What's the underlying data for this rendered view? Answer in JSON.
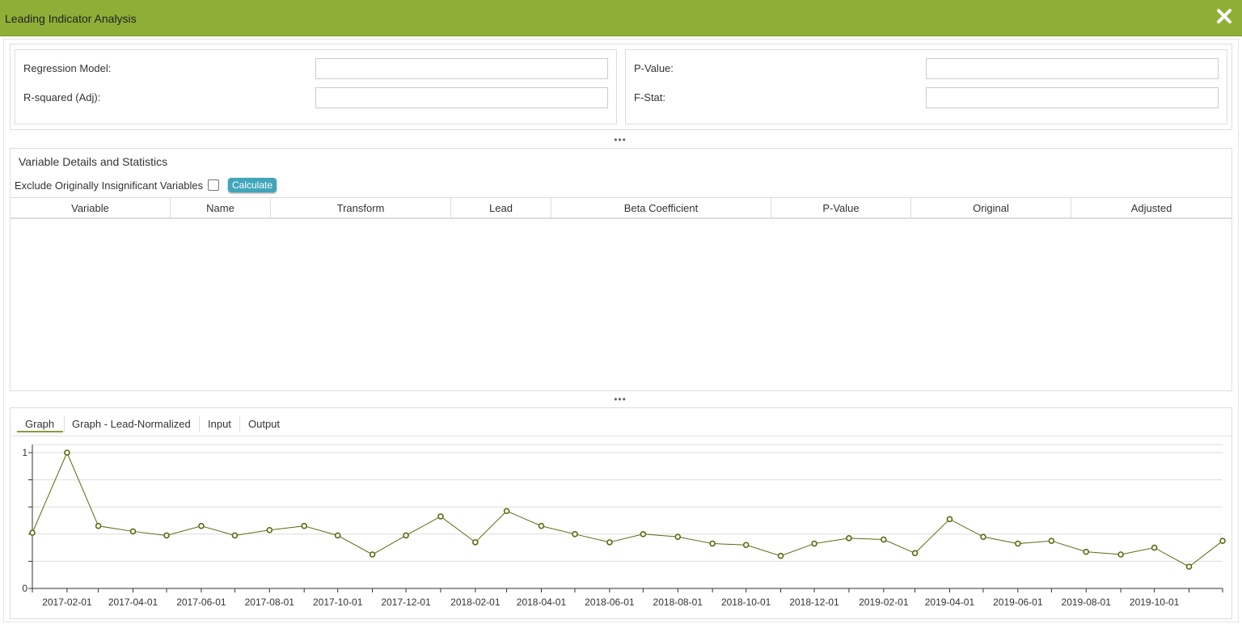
{
  "window": {
    "title": "Leading Indicator Analysis"
  },
  "stats": {
    "regression_model_label": "Regression Model:",
    "regression_model_value": "",
    "r_squared_label": "R-squared (Adj):",
    "r_squared_value": "",
    "p_value_label": "P-Value:",
    "p_value_value": "",
    "f_stat_label": "F-Stat:",
    "f_stat_value": ""
  },
  "splitter": {
    "glyph": "•••"
  },
  "variables": {
    "title": "Variable Details and Statistics",
    "exclude_label": "Exclude Originally Insignificant Variables",
    "exclude_checked": false,
    "calculate_label": "Calculate",
    "columns": [
      "Variable",
      "Name",
      "Transform",
      "Lead",
      "Beta Coefficient",
      "P-Value",
      "Original",
      "Adjusted"
    ],
    "rows": []
  },
  "tabs": [
    {
      "label": "Graph",
      "active": true
    },
    {
      "label": "Graph - Lead-Normalized",
      "active": false
    },
    {
      "label": "Input",
      "active": false
    },
    {
      "label": "Output",
      "active": false
    }
  ],
  "colors": {
    "accent": "#8fae38",
    "series": "#5a6a10",
    "button": "#41a6ba"
  },
  "chart_data": {
    "type": "line",
    "title": "",
    "xlabel": "",
    "ylabel": "",
    "ylim": [
      0,
      1
    ],
    "yticks": [
      "0",
      "1"
    ],
    "xticks": [
      "2017-02-01",
      "2017-04-01",
      "2017-06-01",
      "2017-08-01",
      "2017-10-01",
      "2017-12-01",
      "2018-02-01",
      "2018-04-01",
      "2018-06-01",
      "2018-08-01",
      "2018-10-01",
      "2018-12-01",
      "2019-02-01",
      "2019-04-01",
      "2019-06-01",
      "2019-08-01",
      "2019-10-01"
    ],
    "x": [
      "2017-01-01",
      "2017-02-01",
      "2017-03-01",
      "2017-04-01",
      "2017-05-01",
      "2017-06-01",
      "2017-07-01",
      "2017-08-01",
      "2017-09-01",
      "2017-10-01",
      "2017-11-01",
      "2017-12-01",
      "2018-01-01",
      "2018-02-01",
      "2018-03-01",
      "2018-04-01",
      "2018-05-01",
      "2018-06-01",
      "2018-07-01",
      "2018-08-01",
      "2018-09-01",
      "2018-10-01",
      "2018-11-01",
      "2018-12-01",
      "2019-01-01",
      "2019-02-01",
      "2019-03-01",
      "2019-04-01",
      "2019-05-01",
      "2019-06-01",
      "2019-07-01",
      "2019-08-01",
      "2019-09-01",
      "2019-10-01",
      "2019-11-01",
      "2019-12-01"
    ],
    "series": [
      {
        "values": [
          0.41,
          1.0,
          0.46,
          0.42,
          0.39,
          0.46,
          0.39,
          0.43,
          0.46,
          0.39,
          0.25,
          0.39,
          0.53,
          0.34,
          0.57,
          0.46,
          0.4,
          0.34,
          0.4,
          0.38,
          0.33,
          0.32,
          0.24,
          0.33,
          0.37,
          0.36,
          0.26,
          0.51,
          0.38,
          0.33,
          0.35,
          0.27,
          0.25,
          0.3,
          0.16,
          0.35
        ]
      }
    ],
    "grid": true,
    "legend": "none"
  }
}
